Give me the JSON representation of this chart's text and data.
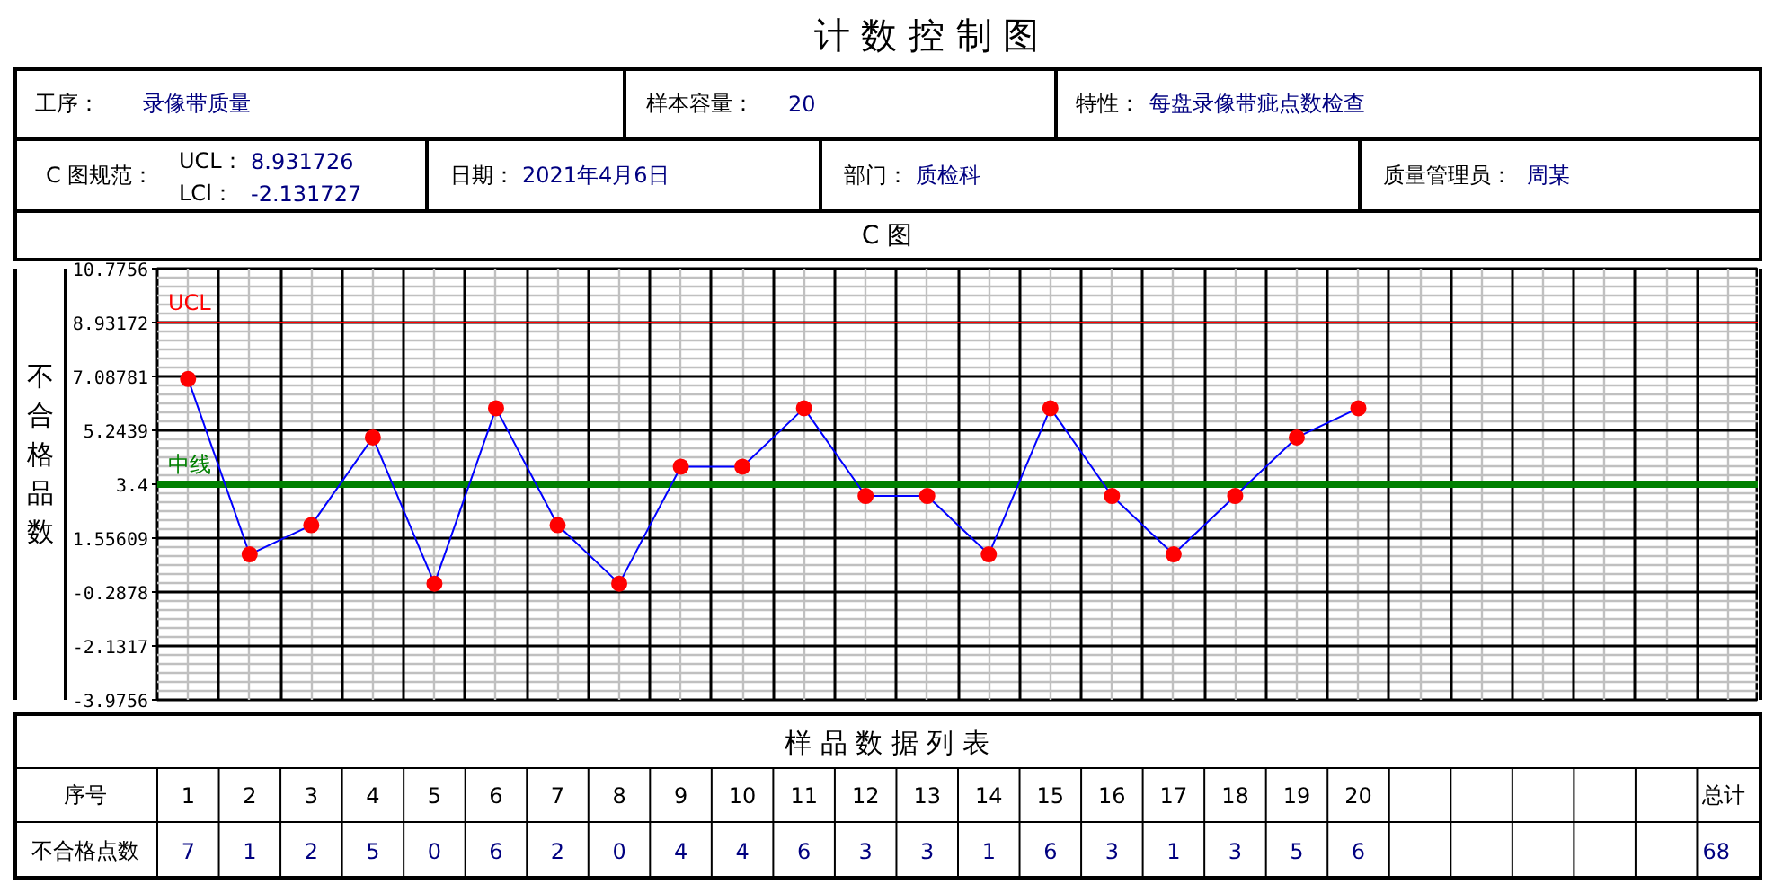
{
  "chart_data": {
    "type": "line",
    "title": "计 数 控 制 图",
    "subtitle": "C 图",
    "xlabel": "序号",
    "ylabel": "不合格品数",
    "annotations": [
      "工序：",
      "录像带质量",
      "样本容量：",
      "20",
      "特性：",
      "每盘录像带疵点数检查",
      "C 图规范：",
      "UCL：",
      "8.931726",
      "LCl：",
      "-2.131727",
      "日期：",
      "2021年4月6日",
      "部门：",
      "质检科",
      "质量管理员：",
      "周某",
      "样 品 数 据 列 表",
      "不合格点数",
      "总计"
    ],
    "categories": [
      "1",
      "2",
      "3",
      "4",
      "5",
      "6",
      "7",
      "8",
      "9",
      "10",
      "11",
      "12",
      "13",
      "14",
      "15",
      "16",
      "17",
      "18",
      "19",
      "20"
    ],
    "ylim": [
      -3.9756,
      10.7756
    ],
    "yticks": [
      -3.9756,
      -2.1317,
      -0.2878,
      1.55609,
      3.4,
      5.2439,
      7.08781,
      8.93172,
      10.7756
    ],
    "series": [
      {
        "color": "#0000ff",
        "colors": [
          "#ff0000",
          "#ff0000",
          "#ff0000",
          "#ff0000",
          "#ff0000",
          "#ff0000",
          "#ff0000",
          "#ff0000",
          "#ff0000",
          "#ff0000",
          "#ff0000",
          "#ff0000",
          "#ff0000",
          "#ff0000",
          "#ff0000",
          "#ff0000",
          "#ff0000",
          "#ff0000",
          "#ff0000",
          "#ff0000"
        ],
        "values": [
          7,
          1,
          2,
          5,
          0,
          6,
          2,
          0,
          4,
          4,
          6,
          3,
          3,
          1,
          6,
          3,
          1,
          3,
          5,
          6
        ]
      }
    ],
    "marker": "circle",
    "line_style": "solid",
    "grid": true,
    "ref_lines": [
      {
        "axis": "y",
        "value": 8.931726,
        "label": "UCL",
        "color": "#ff0000"
      },
      {
        "axis": "y",
        "value": 3.4,
        "label": "中线",
        "color": "#008000"
      }
    ],
    "data_labels": true,
    "totals": [
      "68"
    ]
  }
}
